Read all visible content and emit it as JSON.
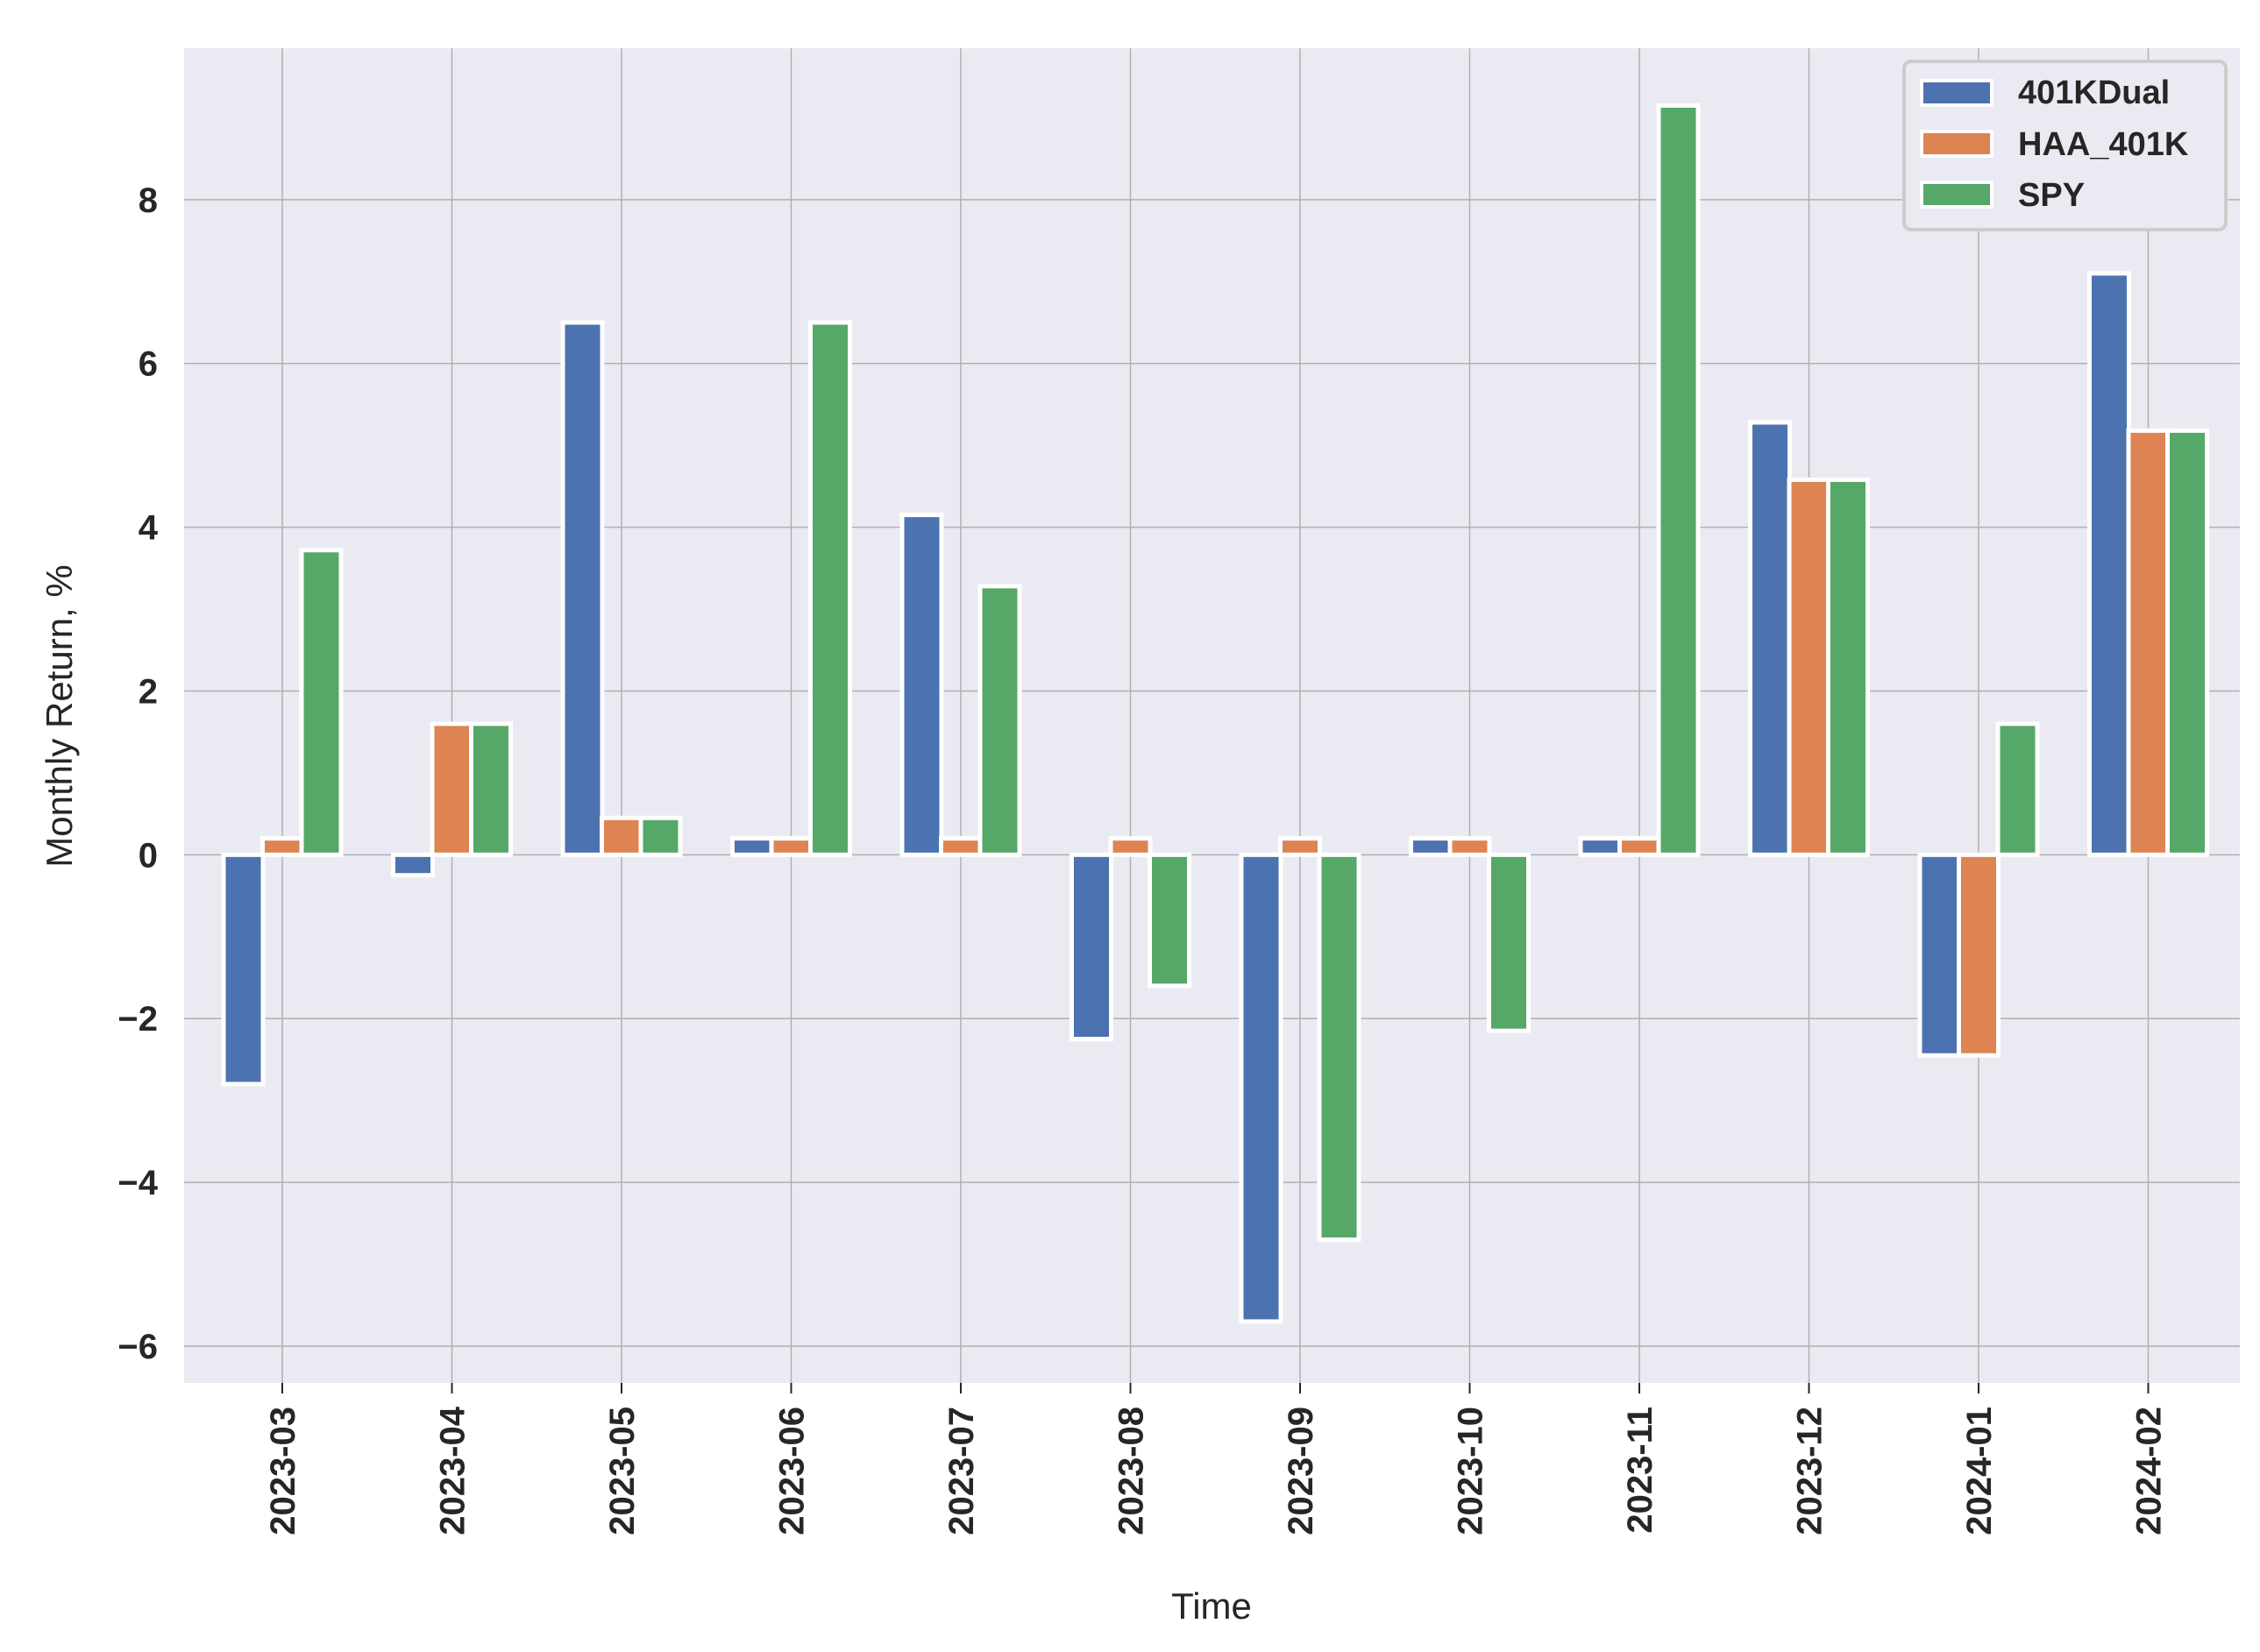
{
  "chart_data": {
    "type": "bar",
    "xlabel": "Time",
    "ylabel": "Monthly Return, %",
    "categories": [
      "2023-03",
      "2023-04",
      "2023-05",
      "2023-06",
      "2023-07",
      "2023-08",
      "2023-09",
      "2023-10",
      "2023-11",
      "2023-12",
      "2024-01",
      "2024-02"
    ],
    "series": [
      {
        "name": "401KDual",
        "color": "#4c72b0",
        "values": [
          -2.8,
          -0.25,
          6.5,
          0.2,
          4.15,
          -2.25,
          -5.7,
          0.2,
          0.2,
          5.28,
          -2.45,
          7.1
        ]
      },
      {
        "name": "HAA_401K",
        "color": "#dd8452",
        "values": [
          0.2,
          1.6,
          0.45,
          0.2,
          0.2,
          0.2,
          0.2,
          0.2,
          0.2,
          4.58,
          -2.45,
          5.18
        ]
      },
      {
        "name": "SPY",
        "color": "#55a868",
        "values": [
          3.72,
          1.6,
          0.45,
          6.5,
          3.28,
          -1.6,
          -4.7,
          -2.15,
          9.15,
          4.58,
          1.6,
          5.18
        ]
      }
    ],
    "yticks": [
      -6,
      -4,
      -2,
      0,
      2,
      4,
      6,
      8
    ],
    "ytick_labels": [
      "−6",
      "−4",
      "−2",
      "0",
      "2",
      "4",
      "6",
      "8"
    ],
    "ylim": [
      -6.45,
      9.85
    ],
    "grid": true,
    "legend_position": "top-right",
    "plot_background": "#eaeaf2",
    "grid_color": "#b0b0b0"
  }
}
